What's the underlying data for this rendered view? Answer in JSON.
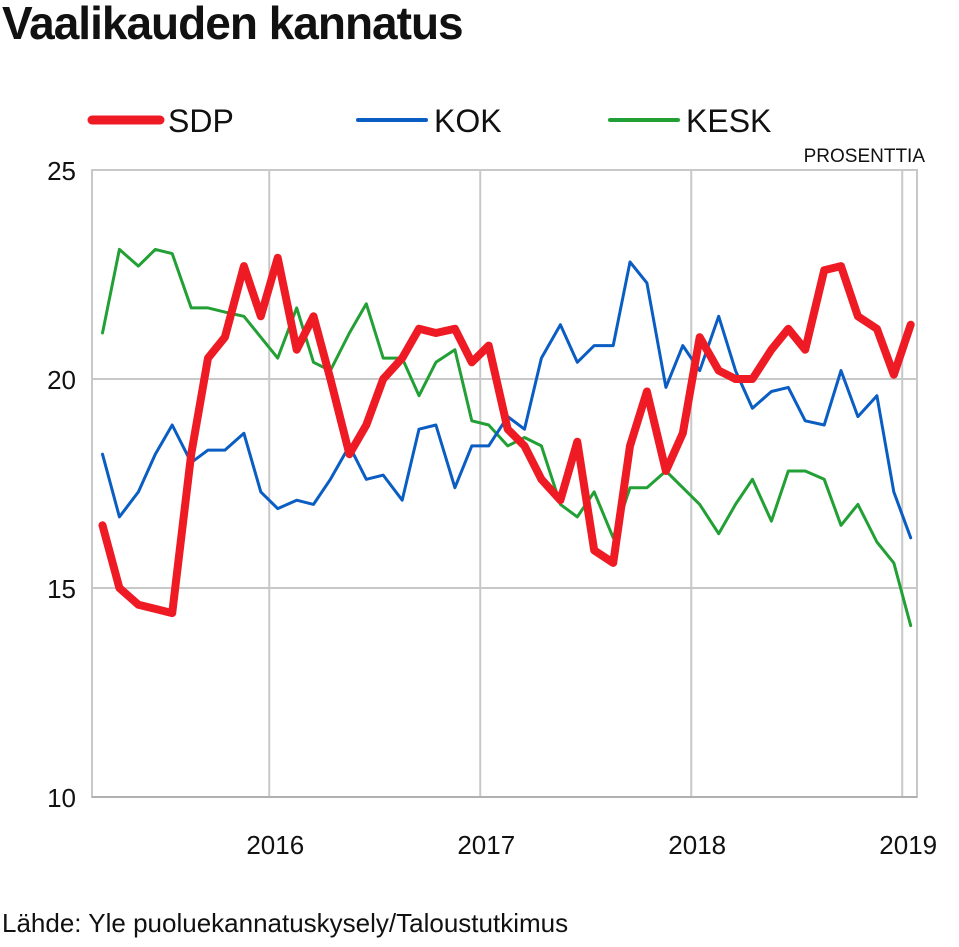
{
  "title": "Vaalikauden kannatus",
  "source": "Lähde: Yle puoluekannatuskysely/Taloustutkimus",
  "chart_data": {
    "type": "line",
    "unit_label": "PROSENTTIA",
    "ylim": [
      10,
      25
    ],
    "xlim": [
      2015.16,
      2019.07
    ],
    "y_ticks": [
      10,
      15,
      20,
      25
    ],
    "x_ticks": [
      {
        "value": 2016,
        "label": "2016"
      },
      {
        "value": 2017,
        "label": "2017"
      },
      {
        "value": 2018,
        "label": "2018"
      },
      {
        "value": 2019,
        "label": "2019"
      }
    ],
    "grid": true,
    "legend_position": "top",
    "x": [
      2015.21,
      2015.29,
      2015.38,
      2015.46,
      2015.54,
      2015.63,
      2015.71,
      2015.79,
      2015.88,
      2015.96,
      2016.04,
      2016.13,
      2016.21,
      2016.29,
      2016.38,
      2016.46,
      2016.54,
      2016.63,
      2016.71,
      2016.79,
      2016.88,
      2016.96,
      2017.04,
      2017.13,
      2017.21,
      2017.29,
      2017.38,
      2017.46,
      2017.54,
      2017.63,
      2017.71,
      2017.79,
      2017.88,
      2017.96,
      2018.04,
      2018.13,
      2018.21,
      2018.29,
      2018.38,
      2018.46,
      2018.54,
      2018.63,
      2018.71,
      2018.79,
      2018.88,
      2018.96,
      2019.04
    ],
    "series": [
      {
        "name": "SDP",
        "color": "#ee1b24",
        "width": 8,
        "values": [
          16.5,
          15.0,
          14.6,
          14.5,
          14.4,
          18.2,
          20.5,
          21.0,
          22.7,
          21.5,
          22.9,
          20.7,
          21.5,
          20.0,
          18.2,
          18.9,
          20.0,
          20.5,
          21.2,
          21.1,
          21.2,
          20.4,
          20.8,
          18.8,
          18.4,
          17.6,
          17.1,
          18.5,
          15.9,
          15.6,
          18.4,
          19.7,
          17.8,
          18.7,
          21.0,
          20.2,
          20.0,
          20.0,
          20.7,
          21.2,
          20.7,
          22.6,
          22.7,
          21.5,
          21.2,
          20.1,
          21.3
        ]
      },
      {
        "name": "KOK",
        "color": "#0a5dc2",
        "width": 3,
        "values": [
          18.2,
          16.7,
          17.3,
          18.2,
          18.9,
          18.0,
          18.3,
          18.3,
          18.7,
          17.3,
          16.9,
          17.1,
          17.0,
          17.6,
          18.4,
          17.6,
          17.7,
          17.1,
          18.8,
          18.9,
          17.4,
          18.4,
          18.4,
          19.1,
          18.8,
          20.5,
          21.3,
          20.4,
          20.8,
          20.8,
          22.8,
          22.3,
          19.8,
          20.8,
          20.2,
          21.5,
          20.2,
          19.3,
          19.7,
          19.8,
          19.0,
          18.9,
          20.2,
          19.1,
          19.6,
          17.3,
          16.2
        ]
      },
      {
        "name": "KESK",
        "color": "#22a035",
        "width": 3,
        "values": [
          21.1,
          23.1,
          22.7,
          23.1,
          23.0,
          21.7,
          21.7,
          21.6,
          21.5,
          21.0,
          20.5,
          21.7,
          20.4,
          20.2,
          21.1,
          21.8,
          20.5,
          20.5,
          19.6,
          20.4,
          20.7,
          19.0,
          18.9,
          18.4,
          18.6,
          18.4,
          17.0,
          16.7,
          17.3,
          16.2,
          17.4,
          17.4,
          17.8,
          17.4,
          17.0,
          16.3,
          17.0,
          17.6,
          16.6,
          17.8,
          17.8,
          17.6,
          16.5,
          17.0,
          16.1,
          15.6,
          14.1
        ]
      }
    ]
  }
}
